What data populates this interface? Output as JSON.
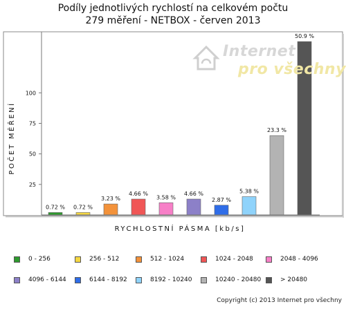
{
  "chart_data": {
    "type": "bar",
    "title": "Podíly jednotlivých rychlostí na celkovém počtu",
    "subtitle": "279 měření - NETBOX - červen 2013",
    "xlabel": "RYCHLOSTNÍ PÁSMA [kb/s]",
    "ylabel": "POČET MĚŘENÍ",
    "ylim": [
      0,
      150
    ],
    "yticks": [
      "25",
      "50",
      "75",
      "100"
    ],
    "ytick_values": [
      25,
      50,
      75,
      100
    ],
    "grid": false,
    "legend_position": "bottom",
    "categories": [
      "0 - 256",
      "256 - 512",
      "512 - 1024",
      "1024 - 2048",
      "2048 - 4096",
      "4096 - 6144",
      "6144 - 8192",
      "8192 - 10240",
      "10240 - 20480",
      "> 20480"
    ],
    "values": [
      2,
      2,
      9,
      13,
      10,
      13,
      8,
      15,
      65,
      142
    ],
    "data_labels": [
      "0.72 %",
      "0.72 %",
      "3.23 %",
      "4.66 %",
      "3.58 %",
      "4.66 %",
      "2.87 %",
      "5.38 %",
      "23.3 %",
      "50.9 %"
    ],
    "colors": [
      "#2e9a2e",
      "#f5d742",
      "#f3923a",
      "#f05656",
      "#f77fc7",
      "#8c80c8",
      "#2f6de8",
      "#8fd3fb",
      "#b3b3b3",
      "#555555"
    ]
  },
  "watermark": {
    "line1": "Internet",
    "line2": "pro všechny"
  },
  "copyright": "Copyright (c) 2013 Internet pro všechny"
}
